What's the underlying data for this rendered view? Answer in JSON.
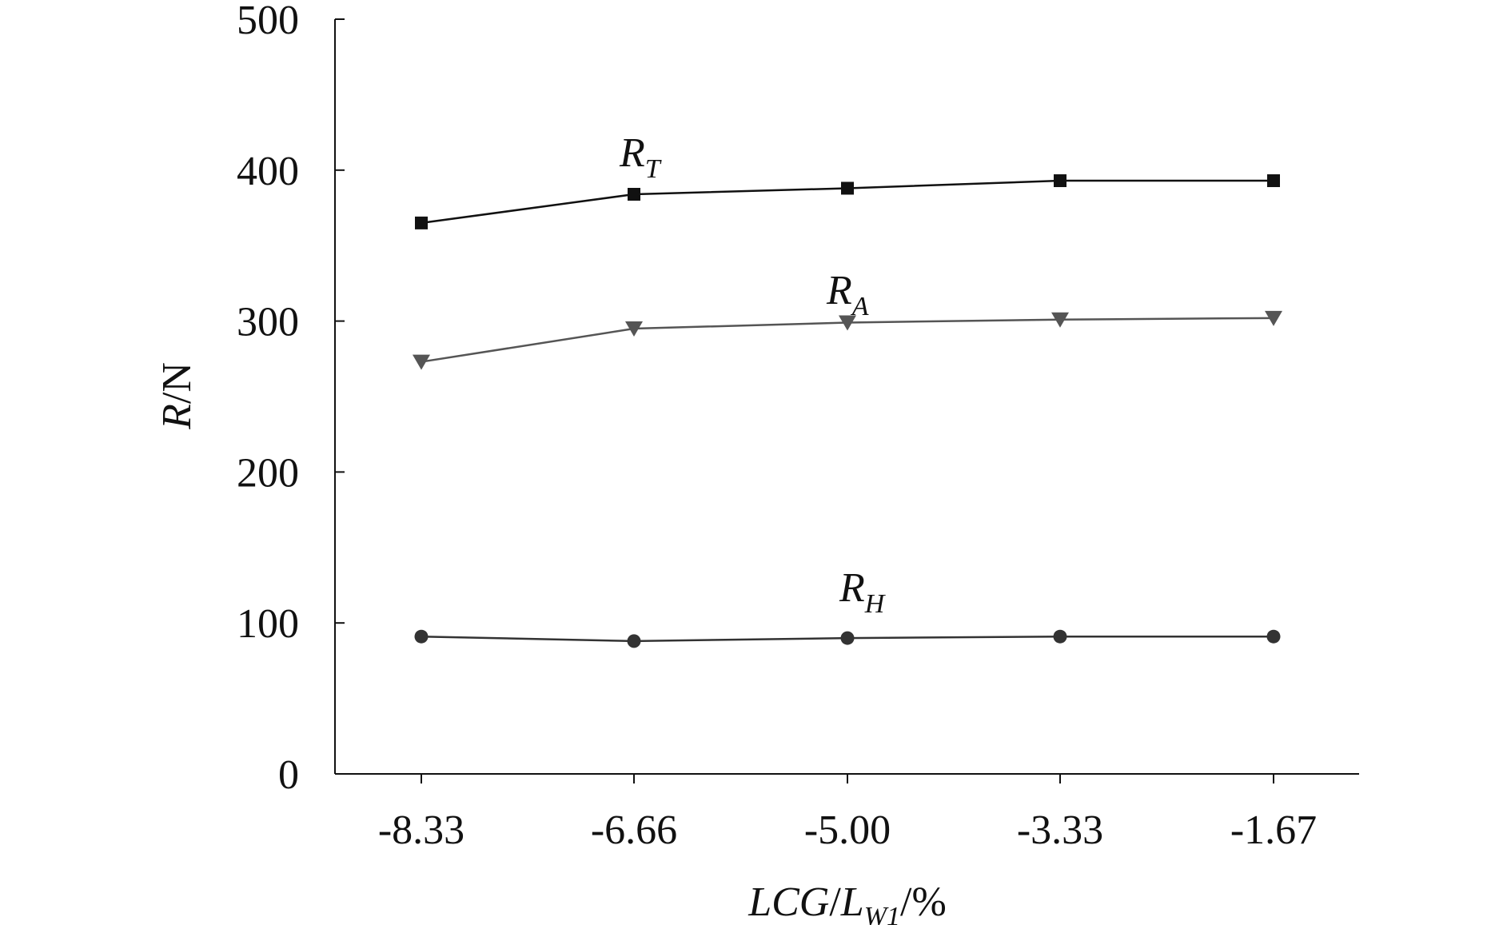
{
  "chart_data": {
    "type": "line",
    "categories": [
      "-8.33",
      "-6.66",
      "-5.00",
      "-3.33",
      "-1.67"
    ],
    "ylim": [
      0,
      500
    ],
    "yticks": [
      "0",
      "100",
      "200",
      "300",
      "400",
      "500"
    ],
    "ylabel": {
      "main": "R",
      "unit": "/N"
    },
    "xlabel": {
      "main": "LCG",
      "sep": "/",
      "sym": "L",
      "sub": "W1",
      "unit": "/%"
    },
    "grid": false,
    "series": [
      {
        "name": "R_T",
        "label_main": "R",
        "label_sub": "T",
        "marker": "square",
        "color": "#111111",
        "values": [
          365,
          384,
          388,
          393,
          393
        ]
      },
      {
        "name": "R_A",
        "label_main": "R",
        "label_sub": "A",
        "marker": "triangle-down",
        "color": "#555555",
        "values": [
          273,
          295,
          299,
          301,
          302
        ]
      },
      {
        "name": "R_H",
        "label_main": "R",
        "label_sub": "H",
        "marker": "circle",
        "color": "#333333",
        "values": [
          91,
          88,
          90,
          91,
          91
        ]
      }
    ]
  }
}
